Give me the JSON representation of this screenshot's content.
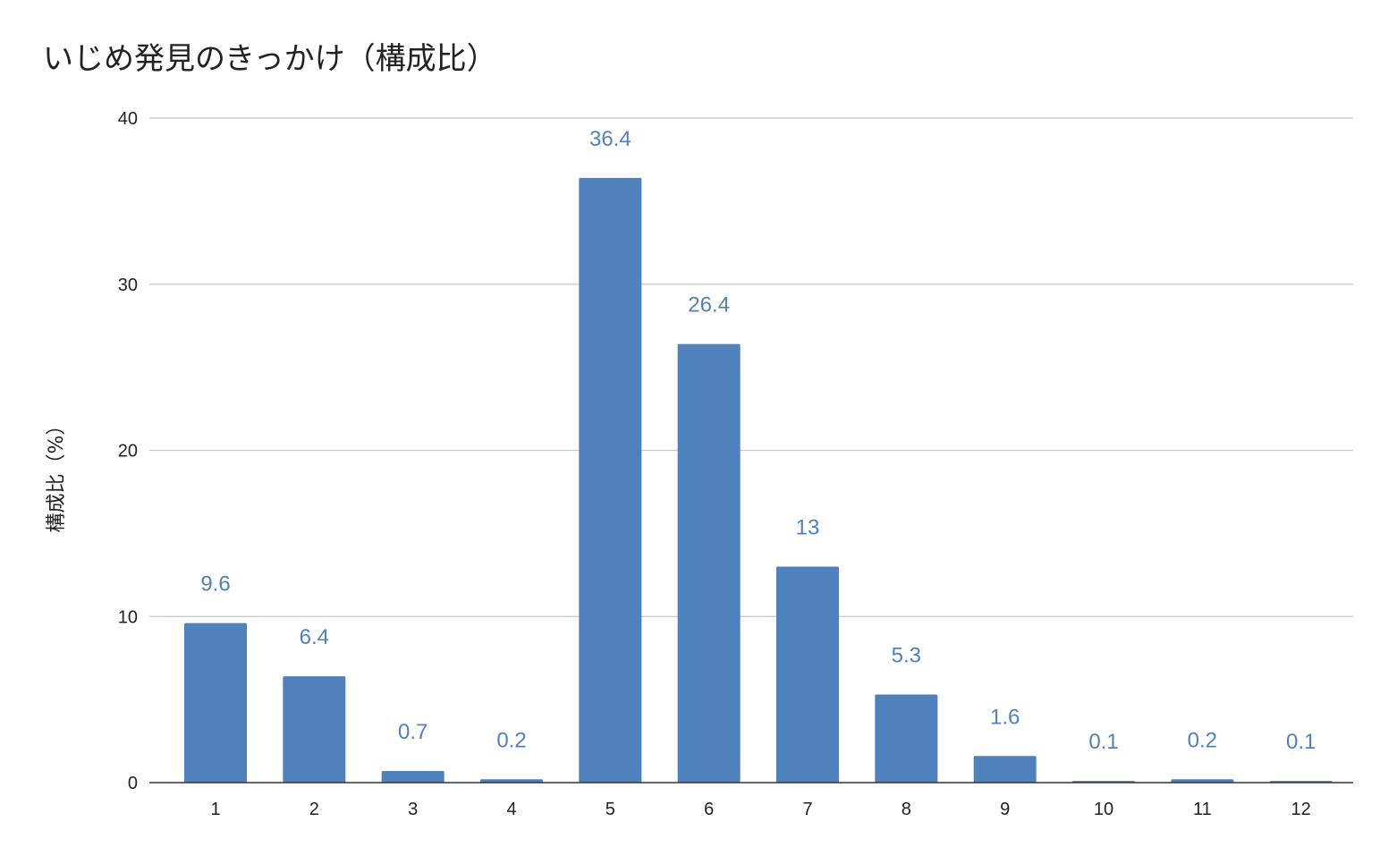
{
  "chart_data": {
    "type": "bar",
    "title": "いじめ発見のきっかけ（構成比）",
    "xlabel": "",
    "ylabel": "構成比（%）",
    "categories": [
      "1",
      "2",
      "3",
      "4",
      "5",
      "6",
      "7",
      "8",
      "9",
      "10",
      "11",
      "12"
    ],
    "values": [
      9.6,
      6.4,
      0.7,
      0.2,
      36.4,
      26.4,
      13,
      5.3,
      1.6,
      0.1,
      0.2,
      0.1
    ],
    "data_labels": [
      "9.6",
      "6.4",
      "0.7",
      "0.2",
      "36.4",
      "26.4",
      "13",
      "5.3",
      "1.6",
      "0.1",
      "0.2",
      "0.1"
    ],
    "ylim": [
      0,
      40
    ],
    "yticks": [
      0,
      10,
      20,
      30,
      40
    ],
    "ytick_labels": [
      "0",
      "10",
      "20",
      "30",
      "40"
    ],
    "grid": true,
    "legend": "none",
    "bar_color": "#4f81bd",
    "label_color": "#4f81bd",
    "grid_color": "#c8c8c8",
    "axis_color": "#333333"
  }
}
